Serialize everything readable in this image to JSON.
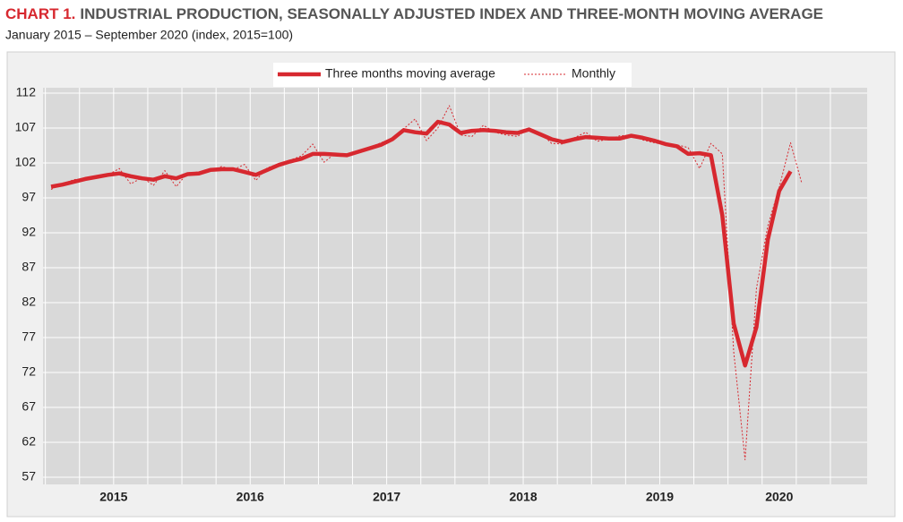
{
  "chart_data": {
    "type": "line",
    "chart_label": "CHART 1.",
    "title": "INDUSTRIAL PRODUCTION, SEASONALLY ADJUSTED INDEX AND THREE-MONTH MOVING AVERAGE",
    "subtitle": "January 2015 – September 2020 (index, 2015=100)",
    "year_labels": [
      "2015",
      "2016",
      "2017",
      "2018",
      "2019",
      "2020"
    ],
    "series": [
      {
        "name": "Three months moving average",
        "color": "#d7282f",
        "style": "solid",
        "values": [
          98.6,
          98.9,
          99.3,
          99.7,
          100.0,
          100.3,
          100.5,
          100.1,
          99.8,
          99.6,
          100.1,
          99.8,
          100.4,
          100.5,
          101.0,
          101.1,
          101.1,
          100.7,
          100.3,
          101.0,
          101.7,
          102.2,
          102.6,
          103.3,
          103.3,
          103.2,
          103.1,
          103.6,
          104.1,
          104.6,
          105.4,
          106.7,
          106.4,
          106.2,
          107.9,
          107.5,
          106.3,
          106.6,
          106.7,
          106.6,
          106.4,
          106.3,
          106.8,
          106.1,
          105.4,
          105.0,
          105.4,
          105.7,
          105.6,
          105.5,
          105.5,
          105.9,
          105.6,
          105.2,
          104.7,
          104.4,
          103.3,
          103.4,
          103.1,
          94.5,
          79.0,
          73.0,
          78.5,
          91.0,
          98.0,
          100.8,
          null,
          null,
          null
        ]
      },
      {
        "name": "Monthly",
        "color": "#d7282f",
        "style": "dotted",
        "values": [
          98.2,
          99.0,
          99.6,
          99.8,
          100.2,
          100.3,
          101.2,
          99.0,
          99.9,
          98.8,
          100.9,
          98.6,
          100.6,
          100.7,
          100.9,
          101.5,
          101.0,
          101.8,
          99.5,
          101.3,
          101.9,
          102.4,
          103.0,
          104.7,
          102.1,
          103.4,
          103.0,
          103.8,
          104.2,
          104.9,
          105.5,
          106.9,
          108.3,
          105.2,
          107.0,
          110.2,
          106.0,
          105.8,
          107.4,
          106.4,
          106.0,
          105.8,
          107.0,
          106.3,
          104.8,
          104.7,
          105.6,
          106.4,
          105.1,
          105.4,
          105.9,
          106.0,
          105.3,
          104.9,
          104.6,
          104.6,
          104.2,
          101.2,
          104.8,
          103.3,
          75.0,
          59.5,
          84.0,
          93.0,
          98.5,
          104.9,
          99.0,
          null,
          null
        ]
      }
    ],
    "ylim": [
      57,
      112
    ],
    "yticks": [
      57,
      62,
      67,
      72,
      77,
      82,
      87,
      92,
      97,
      102,
      107,
      112
    ],
    "grid": true,
    "legend": "top"
  }
}
